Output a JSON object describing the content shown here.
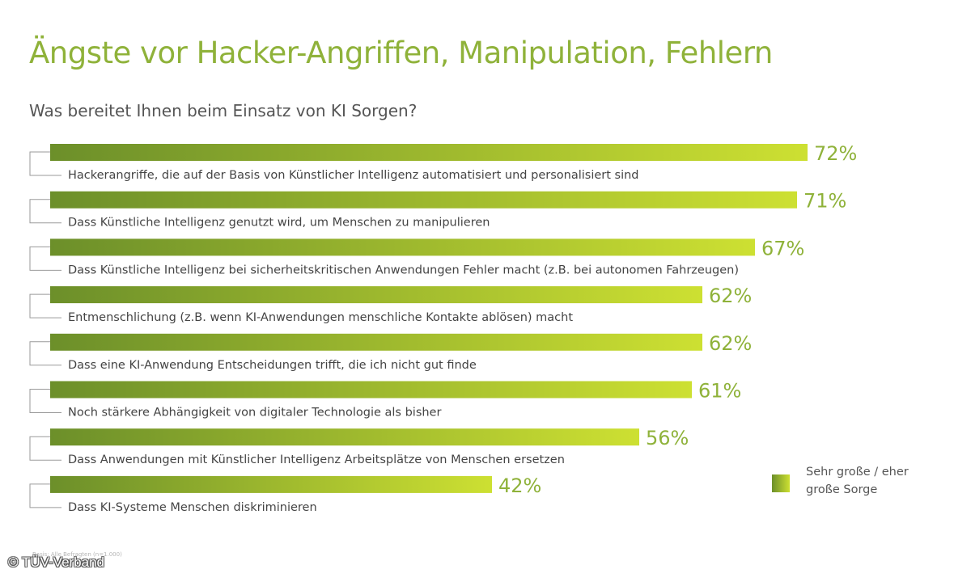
{
  "chart_data": {
    "type": "bar",
    "orientation": "horizontal",
    "title": "Ängste vor Hacker-Angriffen, Manipulation, Fehlern",
    "subtitle": "Was bereitet Ihnen beim Einsatz von KI Sorgen?",
    "categories": [
      "Hackerangriffe, die auf der Basis von Künstlicher Intelligenz automatisiert und personalisiert sind",
      "Dass Künstliche Intelligenz genutzt wird, um Menschen zu manipulieren",
      "Dass Künstliche Intelligenz bei sicherheitskritischen Anwendungen Fehler macht (z.B. bei autonomen Fahrzeugen)",
      "Entmenschlichung (z.B. wenn KI-Anwendungen menschliche Kontakte ablösen) macht",
      "Dass eine KI-Anwendung Entscheidungen trifft, die ich nicht gut finde",
      "Noch stärkere Abhängigkeit von digitaler Technologie als bisher",
      "Dass Anwendungen mit Künstlicher Intelligenz Arbeitsplätze von Menschen ersetzen",
      "Dass KI-Systeme Menschen diskriminieren"
    ],
    "series": [
      {
        "name": "Sehr große / eher große Sorge",
        "values": [
          72,
          71,
          67,
          62,
          62,
          61,
          56,
          42
        ],
        "value_labels": [
          "72%",
          "71%",
          "67%",
          "62%",
          "62%",
          "61%",
          "56%",
          "42%"
        ]
      }
    ],
    "xlim": [
      0,
      100
    ],
    "legend_position": "bottom-right",
    "grid": false,
    "colors": {
      "bar_start": "#6c8f2a",
      "bar_end": "#cde032",
      "value_text": "#8fb23a",
      "title_text": "#8fb23a"
    }
  },
  "source_note": "Basis: Alle Befragten (n=1.000)",
  "copyright": "© TÜV-Verband"
}
